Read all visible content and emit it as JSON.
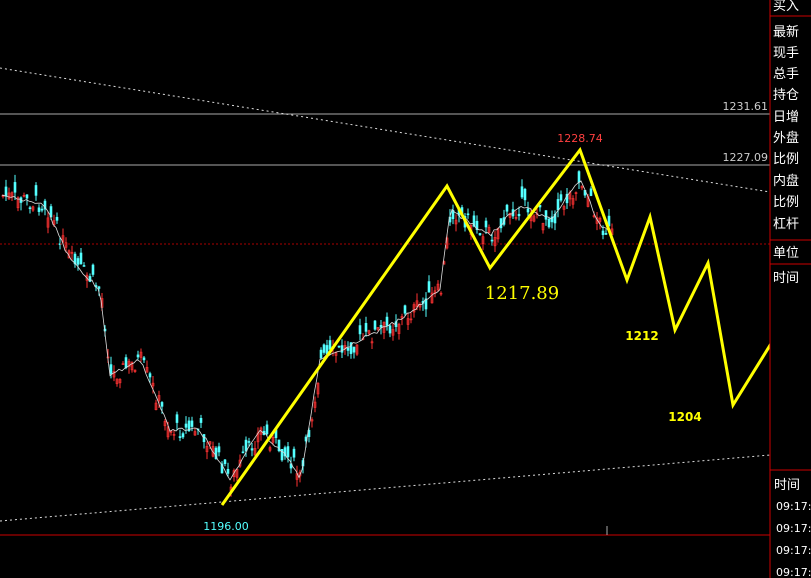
{
  "price_levels": [
    "1231.61",
    "1227.09"
  ],
  "annotations": {
    "high": "1228.74",
    "low": "1196.00",
    "pivot": "1217.89",
    "target_1": "1212",
    "target_2": "1204"
  },
  "side_panel": {
    "labels": [
      "买入",
      "最新",
      "现手",
      "总手",
      "持仓",
      "日增",
      "外盘",
      "比例",
      "内盘",
      "比例",
      "杠杆",
      "单位",
      "时间"
    ],
    "time_header": "时间",
    "times": [
      "09:17:",
      "09:17:",
      "09:17:",
      "09:17:"
    ]
  }
}
